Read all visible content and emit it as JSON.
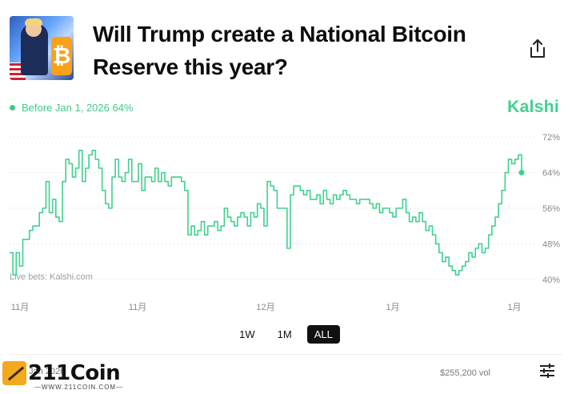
{
  "header": {
    "title": "Will Trump create a National Bitcoin Reserve this year?",
    "thumbnail_icon": "trump-bitcoin-thumbnail",
    "share_icon": "share-icon"
  },
  "legend": {
    "label": "Before Jan 1, 2026 64%"
  },
  "brand": {
    "name": "Kalshi",
    "color": "#40d08e"
  },
  "chart_data": {
    "type": "line",
    "title": "",
    "xlabel": "",
    "ylabel": "",
    "x_ticks": [
      "11月",
      "11月",
      "12月",
      "1月",
      "1月"
    ],
    "y_ticks": [
      "72%",
      "64%",
      "56%",
      "48%",
      "40%"
    ],
    "ylim": [
      38,
      74
    ],
    "grid": true,
    "line_color": "#40d08e",
    "annotation": "Live bets: Kalshi.com",
    "series": [
      {
        "values": [
          46,
          41,
          46,
          43,
          49,
          49,
          51,
          52,
          52,
          55,
          56,
          62,
          55,
          58,
          54,
          53,
          62,
          67,
          66,
          63,
          65,
          69,
          62,
          65,
          68,
          69,
          67,
          65,
          60,
          57,
          56,
          63,
          67,
          63,
          62,
          64,
          67,
          62,
          62,
          66,
          60,
          63,
          63,
          62,
          65,
          62,
          64,
          62,
          61,
          63,
          63,
          63,
          62,
          60,
          50,
          52,
          50,
          51,
          53,
          50,
          52,
          52,
          53,
          51,
          52,
          56,
          54,
          53,
          52,
          54,
          55,
          54,
          52,
          55,
          54,
          57,
          56,
          52,
          62,
          61,
          60,
          56,
          56,
          56,
          47,
          59,
          61,
          61,
          60,
          59,
          60,
          58,
          58,
          59,
          57,
          60,
          58,
          57,
          59,
          58,
          59,
          60,
          59,
          58,
          58,
          57,
          58,
          58,
          58,
          57,
          56,
          57,
          55,
          56,
          56,
          55,
          54,
          56,
          56,
          58,
          55,
          53,
          54,
          53,
          55,
          53,
          51,
          52,
          50,
          48,
          46,
          44,
          45,
          43,
          42,
          41,
          42,
          43,
          44,
          46,
          45,
          47,
          48,
          46,
          47,
          50,
          52,
          54,
          57,
          60,
          64,
          67,
          66,
          67,
          68,
          64
        ]
      }
    ]
  },
  "range_buttons": {
    "b1": "1W",
    "b2": "1M",
    "b3": "ALL",
    "active": "ALL"
  },
  "footer": {
    "date_text": "Jan 2026",
    "volume": "$255,200 vol",
    "settings_icon": "sliders-icon"
  },
  "watermark": {
    "name": "211Coin",
    "url": "—WWW.211COIN.COM—"
  }
}
